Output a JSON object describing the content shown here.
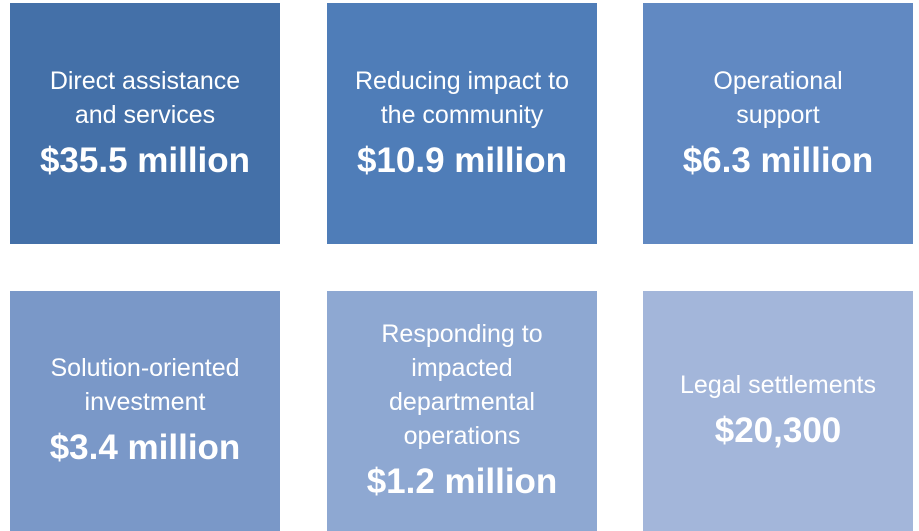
{
  "tiles": [
    {
      "label": [
        "Direct assistance",
        "and services"
      ],
      "amount": "$35.5 million"
    },
    {
      "label": [
        "Reducing impact to",
        "the community"
      ],
      "amount": "$10.9 million"
    },
    {
      "label": [
        "Operational",
        "support"
      ],
      "amount": "$6.3 million"
    },
    {
      "label": [
        "Solution-oriented",
        "investment"
      ],
      "amount": "$3.4 million"
    },
    {
      "label": [
        "Responding to",
        "impacted",
        "departmental",
        "operations"
      ],
      "amount": "$1.2 million"
    },
    {
      "label": [
        "Legal settlements"
      ],
      "amount": "$20,300"
    }
  ]
}
